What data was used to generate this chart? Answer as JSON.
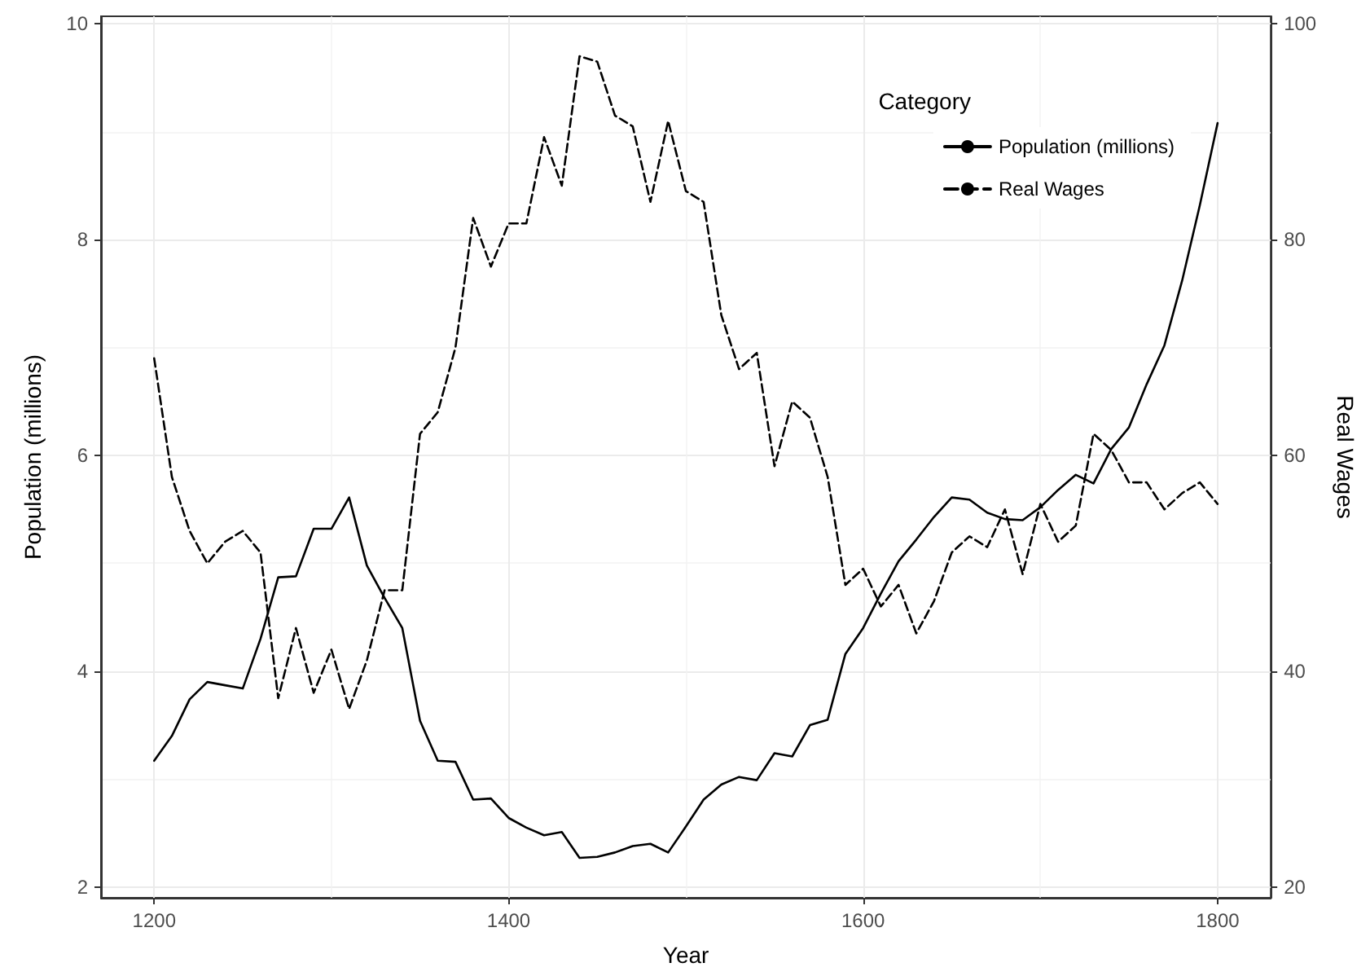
{
  "chart_data": {
    "type": "line",
    "xlabel": "Year",
    "ylabel": "Population (millions)",
    "y2label": "Real Wages",
    "legend_title": "Category",
    "legend": "top right",
    "grid": true,
    "x": [
      1200,
      1210,
      1220,
      1230,
      1240,
      1250,
      1260,
      1270,
      1280,
      1290,
      1300,
      1310,
      1320,
      1330,
      1340,
      1350,
      1360,
      1370,
      1380,
      1390,
      1400,
      1410,
      1420,
      1430,
      1440,
      1450,
      1460,
      1470,
      1480,
      1490,
      1500,
      1510,
      1520,
      1530,
      1540,
      1550,
      1560,
      1570,
      1580,
      1590,
      1600,
      1610,
      1620,
      1630,
      1640,
      1650,
      1660,
      1670,
      1680,
      1690,
      1700,
      1710,
      1720,
      1730,
      1740,
      1750,
      1760,
      1770,
      1780,
      1790,
      1800
    ],
    "series": [
      {
        "name": "Population (millions)",
        "color": "#000000",
        "line_style": "solid",
        "values": [
          3.17,
          3.4,
          3.74,
          3.9,
          3.87,
          3.84,
          4.3,
          4.87,
          4.88,
          5.32,
          5.32,
          5.61,
          4.98,
          4.68,
          4.4,
          3.54,
          3.17,
          3.16,
          2.81,
          2.82,
          2.64,
          2.55,
          2.48,
          2.51,
          2.27,
          2.28,
          2.32,
          2.38,
          2.4,
          2.32,
          2.56,
          2.81,
          2.95,
          3.02,
          2.99,
          3.24,
          3.21,
          3.5,
          3.55,
          4.16,
          4.4,
          4.72,
          5.02,
          5.22,
          5.43,
          5.61,
          5.59,
          5.47,
          5.41,
          5.4,
          5.52,
          5.68,
          5.82,
          5.74,
          6.06,
          6.26,
          6.66,
          7.02,
          7.62,
          8.32,
          9.08
        ]
      },
      {
        "name": "Real Wages",
        "color": "#000000",
        "line_style": "dashed",
        "axis": "y2",
        "values": [
          69,
          58,
          53,
          50,
          52,
          53,
          51,
          37.5,
          44,
          38,
          42,
          36.5,
          41,
          47.5,
          47.5,
          62,
          64,
          70,
          82,
          77.5,
          81.5,
          81.5,
          89.5,
          85,
          97,
          96.5,
          91.5,
          90.5,
          83.5,
          91,
          84.5,
          83.5,
          73,
          68,
          69.5,
          59,
          65,
          63.5,
          58,
          48,
          49.5,
          46,
          48,
          43.5,
          46.5,
          51,
          52.5,
          51.5,
          55,
          49,
          55.5,
          52,
          53.5,
          62,
          60.5,
          57.5,
          57.5,
          55,
          56.5,
          57.5,
          55.5
        ]
      }
    ],
    "xlim": [
      1170,
      1830
    ],
    "xticks": [
      1200,
      1400,
      1600,
      1800
    ],
    "ylim": [
      1.9,
      10.07
    ],
    "yticks": [
      2,
      4,
      6,
      8,
      10
    ],
    "y2lim": [
      19,
      100.7
    ],
    "y2ticks": [
      20,
      40,
      60,
      80,
      100
    ]
  }
}
